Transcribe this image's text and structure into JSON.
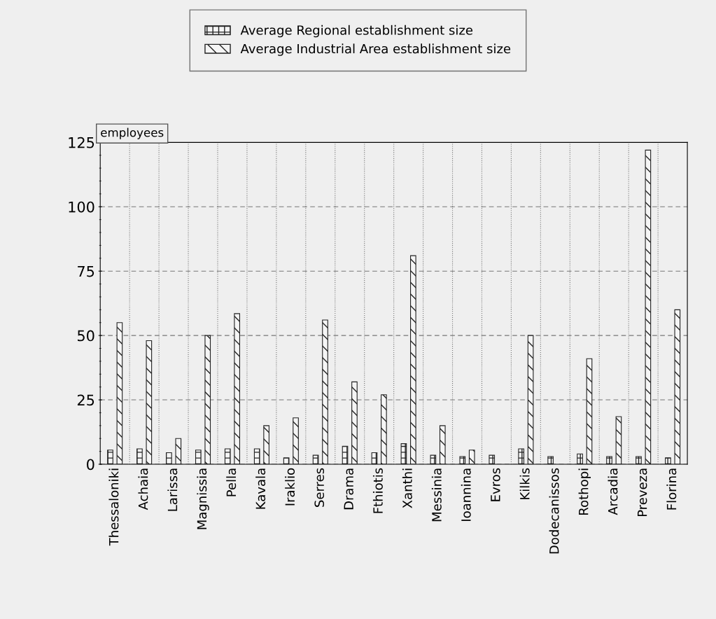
{
  "chart_data": {
    "type": "bar",
    "ylabel": "employees",
    "categories": [
      "Thessaloniki",
      "Achaia",
      "Larissa",
      "Magnissia",
      "Pella",
      "Kavala",
      "Iraklio",
      "Serres",
      "Drama",
      "Fthiotis",
      "Xanthi",
      "Messinia",
      "Ioannina",
      "Evros",
      "Kilkis",
      "Dodecanissos",
      "Rothopi",
      "Arcadia",
      "Preveza",
      "Florina"
    ],
    "series": [
      {
        "name": "Average Regional establishment size",
        "color": "#222222",
        "values": [
          5.5,
          6,
          4.5,
          5.5,
          6,
          6,
          2.5,
          3.5,
          7,
          4.5,
          8,
          3.5,
          3,
          3.5,
          6,
          3,
          4,
          3,
          3,
          2.5
        ]
      },
      {
        "name": "Average Industrial Area establishment size",
        "color": "#222222",
        "values": [
          55,
          48,
          10,
          50,
          58.5,
          15,
          18,
          56,
          32,
          27,
          81,
          15,
          5.5,
          null,
          50,
          null,
          41,
          18.5,
          122,
          60
        ]
      }
    ],
    "ylim": [
      0,
      125
    ],
    "yticks": [
      0,
      25,
      50,
      75,
      100,
      125
    ],
    "grid": true,
    "legend": "top"
  }
}
